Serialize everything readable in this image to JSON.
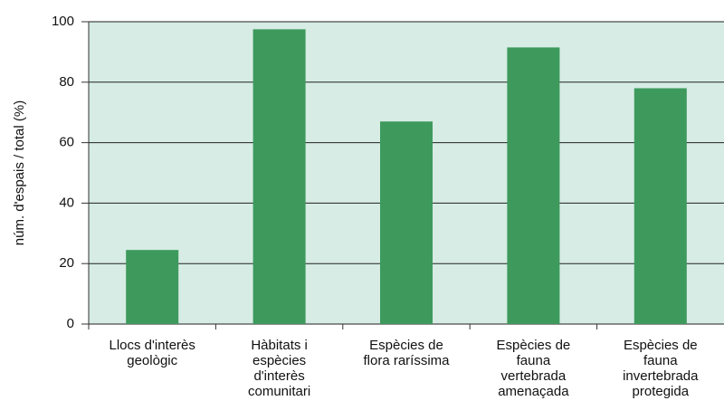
{
  "chart_data": {
    "type": "bar",
    "y_label": "núm. d'espais / total (%)",
    "categories": [
      "Llocs d'interès\ngeològic",
      "Hàbitats i\nespècies\nd'interès\ncomunitari",
      "Espècies de\nflora raríssima",
      "Espècies de\nfauna\nvertebrada\namenaçada",
      "Espècies de\nfauna\ninvertebrada\nprotegida"
    ],
    "values": [
      24.5,
      97.5,
      67,
      91.5,
      78
    ],
    "color": "#3d9a5c",
    "background": "#d6ece4",
    "ylim": [
      0,
      100
    ],
    "yticks": [
      0,
      20,
      40,
      60,
      80,
      100
    ],
    "grid": true
  }
}
